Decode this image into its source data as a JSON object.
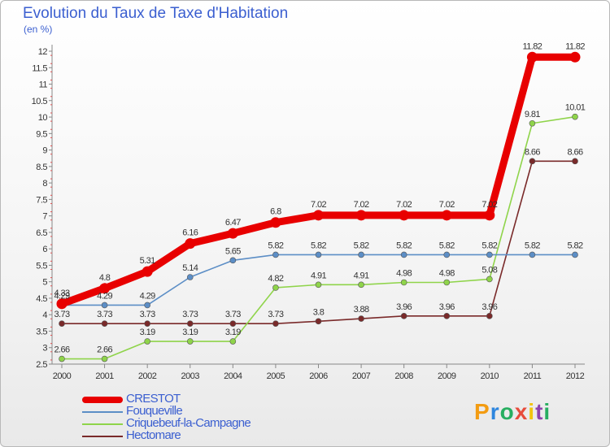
{
  "chart_data": {
    "type": "line",
    "title": "Evolution du Taux de Taxe d'Habitation",
    "subtitle": "(en %)",
    "categories": [
      "2000",
      "2001",
      "2002",
      "2003",
      "2004",
      "2005",
      "2006",
      "2007",
      "2008",
      "2009",
      "2010",
      "2011",
      "2012"
    ],
    "ylim": [
      2.5,
      12
    ],
    "yticks": [
      2.5,
      3,
      3.5,
      4,
      4.5,
      5,
      5.5,
      6,
      6.5,
      7,
      7.5,
      8,
      8.5,
      9,
      9.5,
      10,
      10.5,
      11,
      11.5,
      12
    ],
    "ytick_labels": [
      "2.5",
      "3",
      "3.5",
      "4",
      "4.5",
      "5",
      "5.5",
      "6",
      "6.5",
      "7",
      "7.5",
      "8",
      "8.5",
      "9",
      "9.5",
      "10",
      "10.5",
      "11",
      "11.5",
      "12"
    ],
    "grid": false,
    "series": [
      {
        "name": "CRESTOT",
        "color": "#e80000",
        "values": [
          4.33,
          4.8,
          5.31,
          6.16,
          6.47,
          6.8,
          7.02,
          7.02,
          7.02,
          7.02,
          7.02,
          11.82,
          11.82
        ],
        "labels": [
          "4.33",
          "4.8",
          "5.31",
          "6.16",
          "6.47",
          "6.8",
          "7.02",
          "7.02",
          "7.02",
          "7.02",
          "7.02",
          "11.82",
          "11.82"
        ]
      },
      {
        "name": "Fouqueville",
        "color": "#5c8ec6",
        "values": [
          4.29,
          4.29,
          4.29,
          5.14,
          5.65,
          5.82,
          5.82,
          5.82,
          5.82,
          5.82,
          5.82,
          5.82,
          5.82
        ],
        "labels": [
          "4.29",
          "4.29",
          "4.29",
          "5.14",
          "5.65",
          "5.82",
          "5.82",
          "5.82",
          "5.82",
          "5.82",
          "5.82",
          "5.82",
          "5.82"
        ]
      },
      {
        "name": "Criquebeuf-la-Campagne",
        "color": "#8fd44a",
        "values": [
          2.66,
          2.66,
          3.19,
          3.19,
          3.19,
          4.82,
          4.91,
          4.91,
          4.98,
          4.98,
          5.08,
          9.81,
          10.01
        ],
        "labels": [
          "2.66",
          "2.66",
          "3.19",
          "3.19",
          "3.19",
          "4.82",
          "4.91",
          "4.91",
          "4.98",
          "4.98",
          "5.08",
          "9.81",
          "10.01"
        ]
      },
      {
        "name": "Hectomare",
        "color": "#7a2a2a",
        "values": [
          3.73,
          3.73,
          3.73,
          3.73,
          3.73,
          3.73,
          3.8,
          3.88,
          3.96,
          3.96,
          3.96,
          8.66,
          8.66
        ],
        "labels": [
          "3.73",
          "3.73",
          "3.73",
          "3.73",
          "3.73",
          "3.73",
          "3.8",
          "3.88",
          "3.96",
          "3.96",
          "3.96",
          "8.66",
          "8.66"
        ]
      }
    ]
  },
  "legend": [
    {
      "label": "CRESTOT",
      "color": "#e80000"
    },
    {
      "label": "Fouqueville",
      "color": "#5c8ec6"
    },
    {
      "label": "Criquebeuf-la-Campagne",
      "color": "#8fd44a"
    },
    {
      "label": "Hectomare",
      "color": "#7a2a2a"
    }
  ],
  "logo": {
    "letters": [
      "P",
      "r",
      "o",
      "x",
      "i",
      "t",
      "i"
    ],
    "colors": [
      "#f39c12",
      "#2e86de",
      "#27ae60",
      "#e74c3c",
      "#f1c40f",
      "#8e44ad",
      "#27ae60"
    ]
  }
}
